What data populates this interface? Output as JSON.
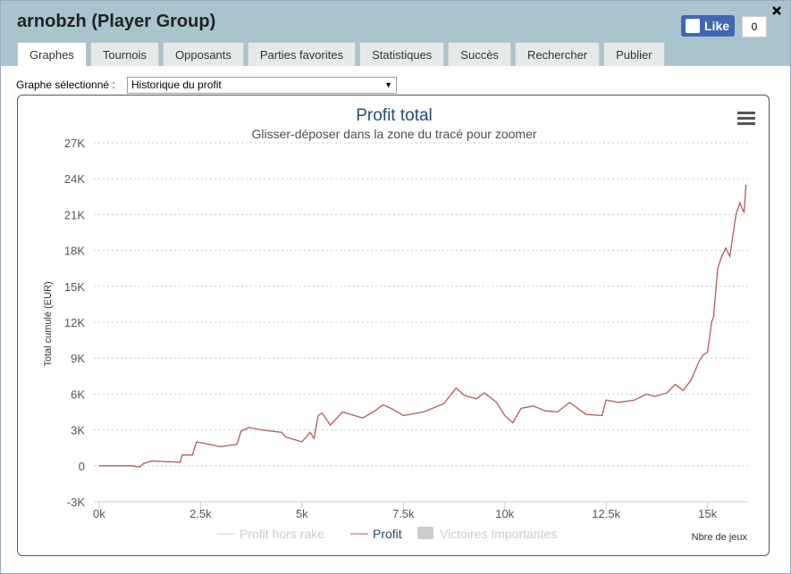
{
  "header": {
    "title": "arnobzh (Player Group)",
    "like": "Like",
    "like_count": "0"
  },
  "tabs": [
    "Graphes",
    "Tournois",
    "Opposants",
    "Parties favorites",
    "Statistiques",
    "Succès",
    "Rechercher",
    "Publier"
  ],
  "selector": {
    "label": "Graphe sélectionné :",
    "value": "Historique du profit"
  },
  "chart_data": {
    "type": "line",
    "title": "Profit total",
    "subtitle": "Glisser-déposer dans la zone du tracé pour zoomer",
    "y_label": "Total cumulé (EUR)",
    "x_label": "Nbre de jeux",
    "x": [
      0,
      800,
      1000,
      1100,
      1300,
      2000,
      2050,
      2300,
      2400,
      3000,
      3400,
      3500,
      3700,
      4000,
      4500,
      4600,
      5000,
      5200,
      5300,
      5400,
      5500,
      5700,
      6000,
      6500,
      6800,
      7000,
      7200,
      7500,
      8000,
      8500,
      8800,
      9000,
      9300,
      9500,
      9800,
      10000,
      10200,
      10400,
      10700,
      11000,
      11300,
      11600,
      11800,
      12000,
      12400,
      12500,
      12800,
      13200,
      13500,
      13700,
      14000,
      14200,
      14400,
      14600,
      14800,
      14900,
      15000,
      15100,
      15150,
      15250,
      15350,
      15450,
      15550,
      15700,
      15800,
      15850,
      15900,
      15950
    ],
    "series": [
      {
        "name": "Profit",
        "color": "#b05a5a",
        "values": [
          0,
          0,
          -100,
          200,
          400,
          300,
          900,
          900,
          2000,
          1600,
          1800,
          2900,
          3200,
          3000,
          2800,
          2400,
          2000,
          2800,
          2300,
          4200,
          4400,
          3400,
          4500,
          4000,
          4600,
          5100,
          4800,
          4200,
          4500,
          5200,
          6500,
          5900,
          5600,
          6100,
          5300,
          4200,
          3600,
          4800,
          5000,
          4600,
          4500,
          5300,
          4800,
          4300,
          4200,
          5500,
          5300,
          5500,
          6000,
          5800,
          6100,
          6800,
          6300,
          7200,
          8800,
          9300,
          9500,
          12000,
          12500,
          16500,
          17500,
          18200,
          17500,
          21000,
          22000,
          21500,
          21200,
          23500
        ]
      }
    ],
    "hidden_legend": [
      "Profit hors rake",
      "Victoires Importantes"
    ],
    "xlim": [
      -130,
      16000
    ],
    "ylim": [
      -3000,
      27000
    ],
    "xticks": [
      {
        "value": 0,
        "label": "0k"
      },
      {
        "value": 2500,
        "label": "2.5k"
      },
      {
        "value": 5000,
        "label": "5k"
      },
      {
        "value": 7500,
        "label": "7.5k"
      },
      {
        "value": 10000,
        "label": "10k"
      },
      {
        "value": 12500,
        "label": "12.5k"
      },
      {
        "value": 15000,
        "label": "15k"
      }
    ],
    "yticks": [
      {
        "value": -3000,
        "label": "-3K"
      },
      0,
      {
        "value": 3000,
        "label": "3K"
      },
      {
        "value": 6000,
        "label": "6K"
      },
      {
        "value": 9000,
        "label": "9K"
      },
      {
        "value": 12000,
        "label": "12K"
      },
      {
        "value": 15000,
        "label": "15K"
      },
      {
        "value": 18000,
        "label": "18K"
      },
      {
        "value": 21000,
        "label": "21K"
      },
      {
        "value": 24000,
        "label": "24K"
      },
      {
        "value": 27000,
        "label": "27K"
      }
    ],
    "grid": true
  }
}
